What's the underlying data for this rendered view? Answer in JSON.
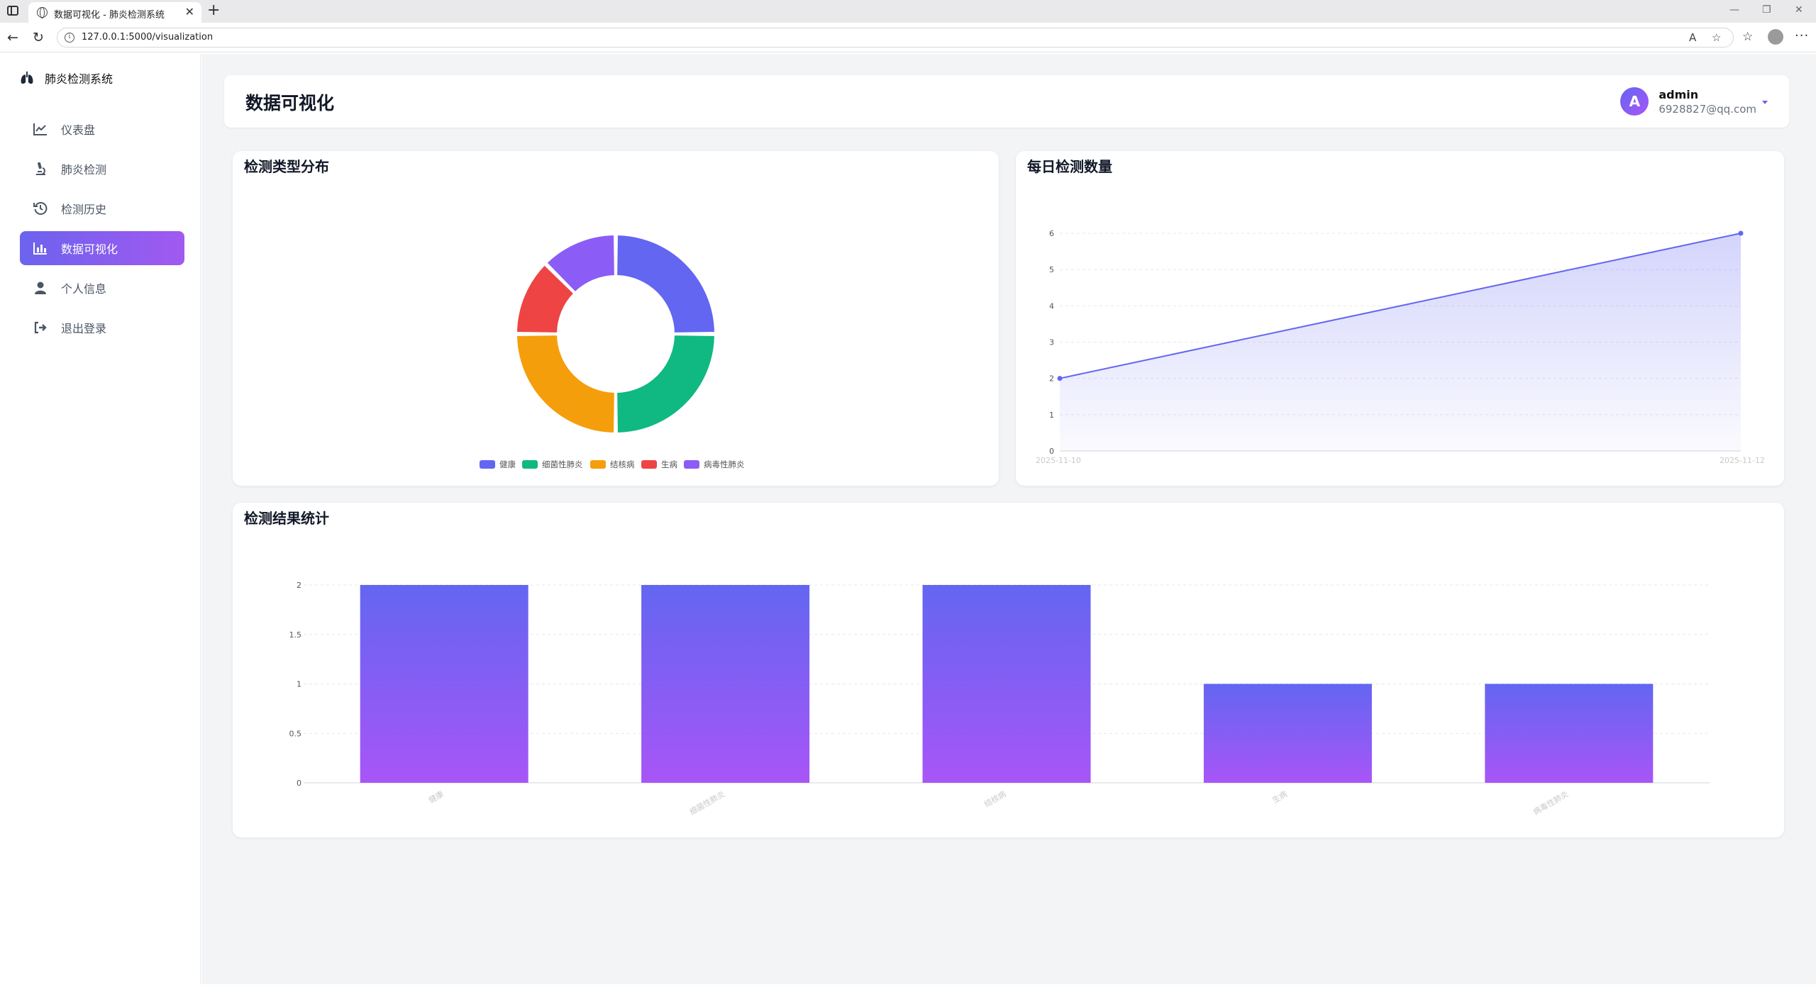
{
  "browser": {
    "tab_title": "数据可视化 - 肺炎检测系统",
    "url": "127.0.0.1:5000/visualization",
    "colors": {
      "tabstrip": "#e9e9eb"
    }
  },
  "sidebar": {
    "brand": "肺炎检测系统",
    "items": [
      {
        "label": "仪表盘",
        "icon": "line-chart-icon",
        "active": false
      },
      {
        "label": "肺炎检测",
        "icon": "microscope-icon",
        "active": false
      },
      {
        "label": "检测历史",
        "icon": "history-icon",
        "active": false
      },
      {
        "label": "数据可视化",
        "icon": "bar-chart-icon",
        "active": true
      },
      {
        "label": "个人信息",
        "icon": "user-icon",
        "active": false
      },
      {
        "label": "退出登录",
        "icon": "logout-icon",
        "active": false
      }
    ]
  },
  "header": {
    "title": "数据可视化",
    "user": {
      "avatar_letter": "A",
      "name": "admin",
      "email": "6928827@qq.com"
    }
  },
  "colors": {
    "accent": "#6366f1",
    "accent2": "#a855f7",
    "healthy": "#6366f1",
    "bacterial": "#10b981",
    "tuberculosis": "#f59e0b",
    "sick": "#ef4444",
    "viral": "#8b5cf6"
  },
  "chart_data": [
    {
      "type": "pie",
      "variant": "donut",
      "title": "检测类型分布",
      "categories": [
        "健康",
        "细菌性肺炎",
        "结核病",
        "生病",
        "病毒性肺炎"
      ],
      "values": [
        2,
        2,
        2,
        1,
        1
      ],
      "colors": [
        "#6366f1",
        "#10b981",
        "#f59e0b",
        "#ef4444",
        "#8b5cf6"
      ],
      "legend": "bottom"
    },
    {
      "type": "area",
      "title": "每日检测数量",
      "x": [
        "2025-11-10",
        "2025-11-12"
      ],
      "series": [
        {
          "values": [
            2,
            6
          ]
        }
      ],
      "ylim": [
        0,
        6
      ],
      "yticks": [
        0,
        1,
        2,
        3,
        4,
        5,
        6
      ],
      "grid": true
    },
    {
      "type": "bar",
      "title": "检测结果统计",
      "categories": [
        "健康",
        "细菌性肺炎",
        "结核病",
        "生病",
        "病毒性肺炎"
      ],
      "values": [
        2,
        2,
        2,
        1,
        1
      ],
      "ylim": [
        0,
        2
      ],
      "yticks": [
        "0",
        "0.5",
        "1",
        "1.5",
        "2"
      ],
      "grid": true
    }
  ]
}
